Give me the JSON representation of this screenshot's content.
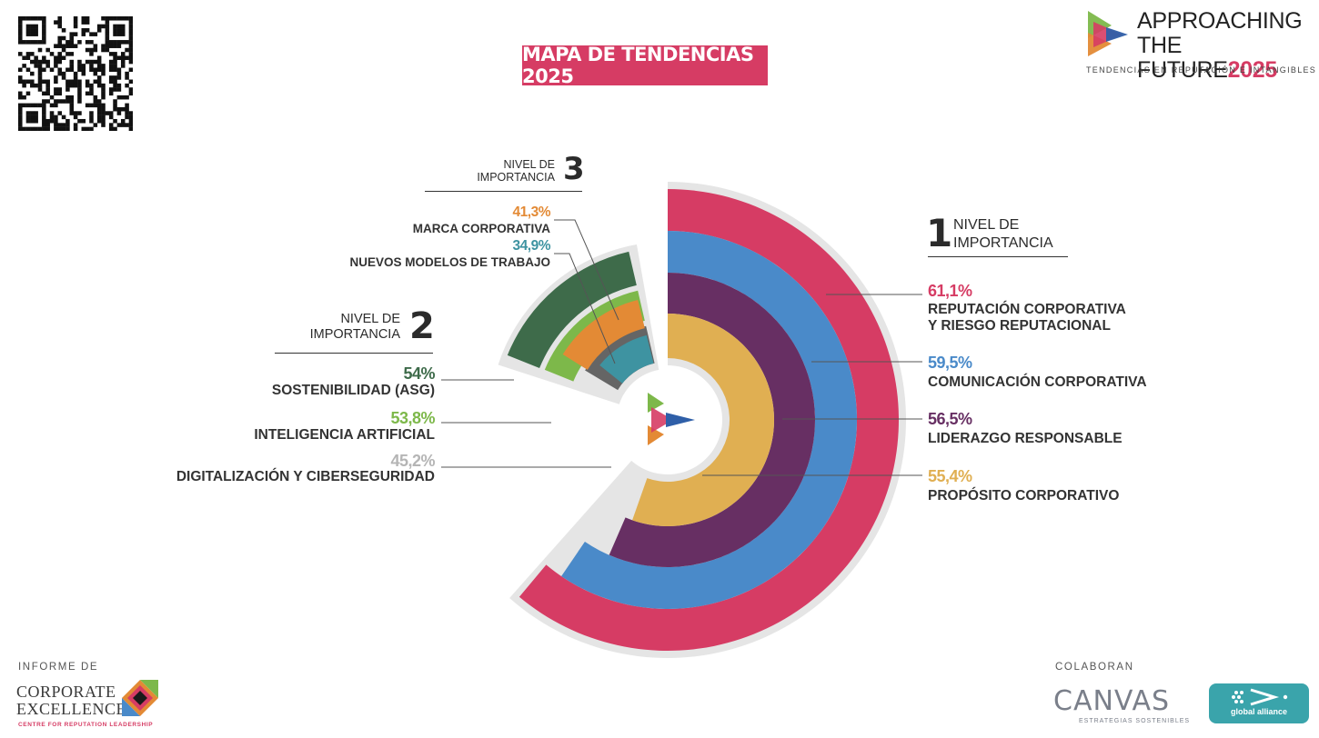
{
  "header": {
    "title": "MAPA DE TENDENCIAS 2025",
    "logo_line1": "APPROACHING",
    "logo_line2_a": "THE FUTURE",
    "logo_line2_b": "2025",
    "logo_subtitle": "TENDENCIAS EN REPUTACIÓN E INTANGIBLES"
  },
  "levels": {
    "level1": {
      "number": "1",
      "text": [
        "NIVEL DE",
        "IMPORTANCIA"
      ]
    },
    "level2": {
      "number": "2",
      "text": [
        "NIVEL DE",
        "IMPORTANCIA"
      ]
    },
    "level3": {
      "number": "3",
      "text": [
        "NIVEL DE",
        "IMPORTANCIA"
      ]
    }
  },
  "chart_data": {
    "type": "radial-bar",
    "title": "MAPA DE TENDENCIAS 2025",
    "unit": "%",
    "groups": [
      {
        "level": "1",
        "series": [
          {
            "name": "REPUTACIÓN CORPORATIVA Y RIESGO REPUTACIONAL",
            "name_lines": [
              "REPUTACIÓN CORPORATIVA",
              "Y RIESGO REPUTACIONAL"
            ],
            "value": 61.1,
            "label": "61,1%",
            "color": "#d63c64"
          },
          {
            "name": "COMUNICACIÓN CORPORATIVA",
            "name_lines": [
              "COMUNICACIÓN CORPORATIVA"
            ],
            "value": 59.5,
            "label": "59,5%",
            "color": "#4a8ac9"
          },
          {
            "name": "LIDERAZGO RESPONSABLE",
            "name_lines": [
              "LIDERAZGO RESPONSABLE"
            ],
            "value": 56.5,
            "label": "56,5%",
            "color": "#672f63"
          },
          {
            "name": "PROPÓSITO CORPORATIVO",
            "name_lines": [
              "PROPÓSITO CORPORATIVO"
            ],
            "value": 55.4,
            "label": "55,4%",
            "color": "#e0af52"
          }
        ]
      },
      {
        "level": "2",
        "series": [
          {
            "name": "SOSTENIBILIDAD (ASG)",
            "value": 54,
            "label": "54%",
            "color": "#3e6b4a"
          },
          {
            "name": "INTELIGENCIA ARTIFICIAL",
            "value": 53.8,
            "label": "53,8%",
            "color": "#7db84a"
          },
          {
            "name": "DIGITALIZACIÓN Y CIBERSEGURIDAD",
            "value": 45.2,
            "label": "45,2%",
            "color": "#656565",
            "label_color": "#b5b5b5"
          }
        ]
      },
      {
        "level": "3",
        "series": [
          {
            "name": "MARCA CORPORATIVA",
            "value": 41.3,
            "label": "41,3%",
            "color": "#e38a35"
          },
          {
            "name": "NUEVOS MODELOS DE TRABAJO",
            "value": 34.9,
            "label": "34,9%",
            "color": "#3e93a1"
          }
        ]
      }
    ]
  },
  "footer": {
    "informe_label": "INFORME DE",
    "ce_line1": "CORPORATE",
    "ce_line2": "EXCELLENCE",
    "ce_sub": "CENTRE FOR REPUTATION LEADERSHIP",
    "colaboran_label": "COLABORAN",
    "canvas_name": "CANVAS",
    "canvas_sub": "ESTRATEGIAS SOSTENIBLES",
    "ga_name": "global alliance"
  }
}
